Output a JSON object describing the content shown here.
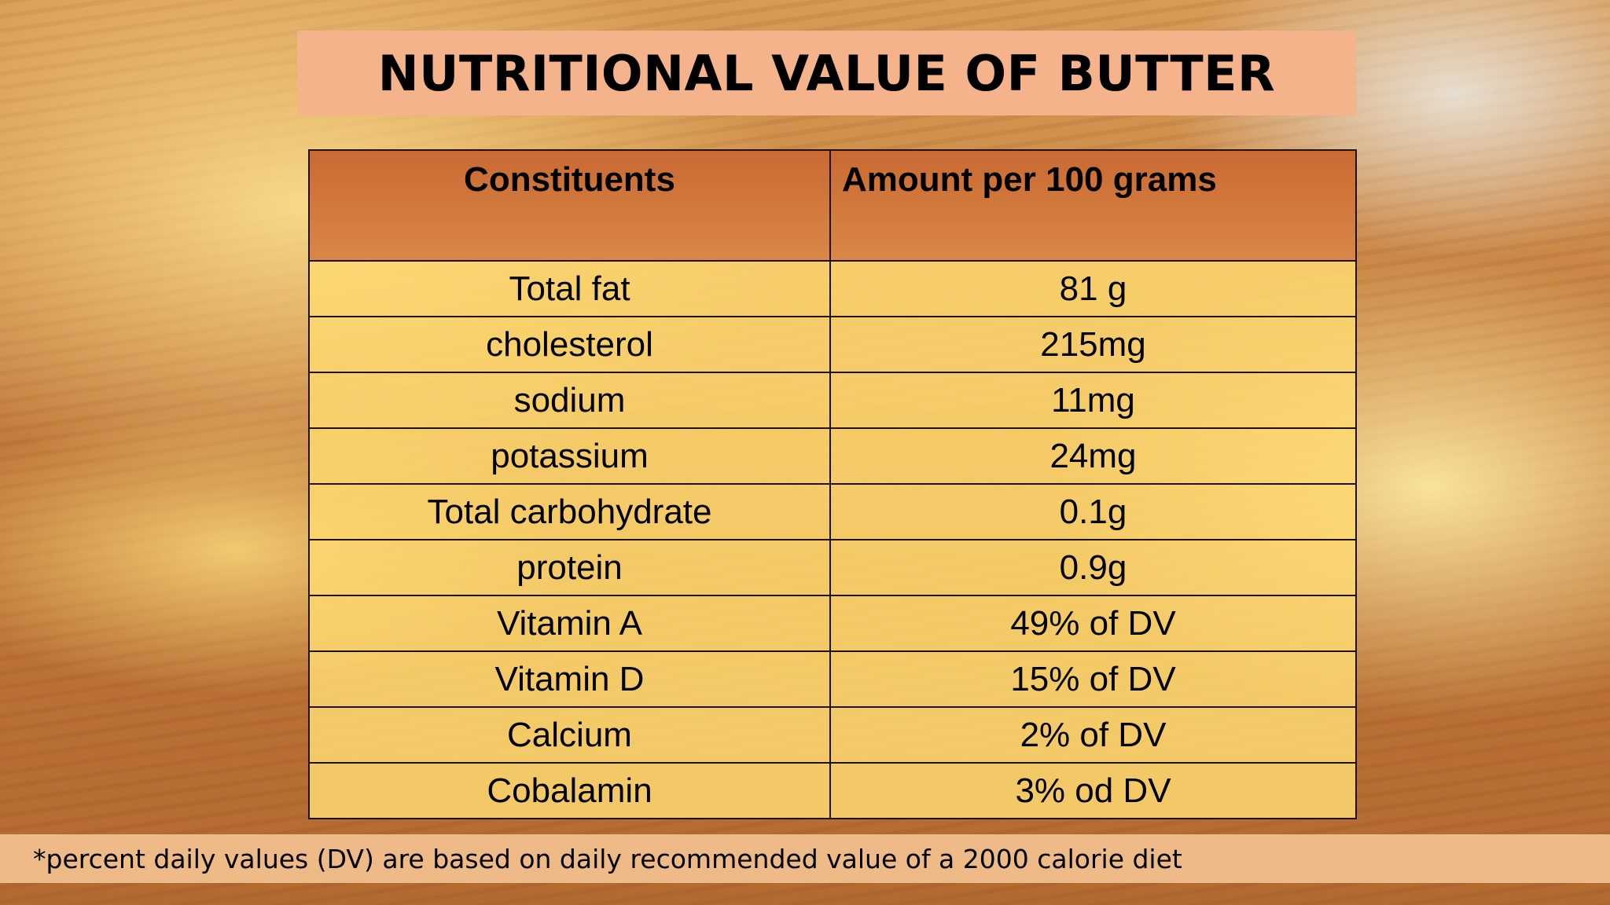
{
  "title": "NUTRITIONAL VALUE OF BUTTER",
  "table": {
    "headers": [
      "Constituents",
      "Amount per 100 grams"
    ],
    "rows": [
      [
        "Total fat",
        "81 g"
      ],
      [
        "cholesterol",
        "215mg"
      ],
      [
        "sodium",
        "11mg"
      ],
      [
        "potassium",
        "24mg"
      ],
      [
        "Total carbohydrate",
        "0.1g"
      ],
      [
        "protein",
        "0.9g"
      ],
      [
        "Vitamin A",
        "49% of DV"
      ],
      [
        "Vitamin D",
        "15% of DV"
      ],
      [
        "Calcium",
        "2% of DV"
      ],
      [
        "Cobalamin",
        "3% od DV"
      ]
    ]
  },
  "footnote": "*percent daily values (DV) are based on daily recommended value of a 2000 calorie diet",
  "colors": {
    "title_bar": "#f4b38a",
    "header_fill": "#cf7038",
    "row_fill": "#fdd970",
    "footnote_bar": "#f8c896"
  }
}
